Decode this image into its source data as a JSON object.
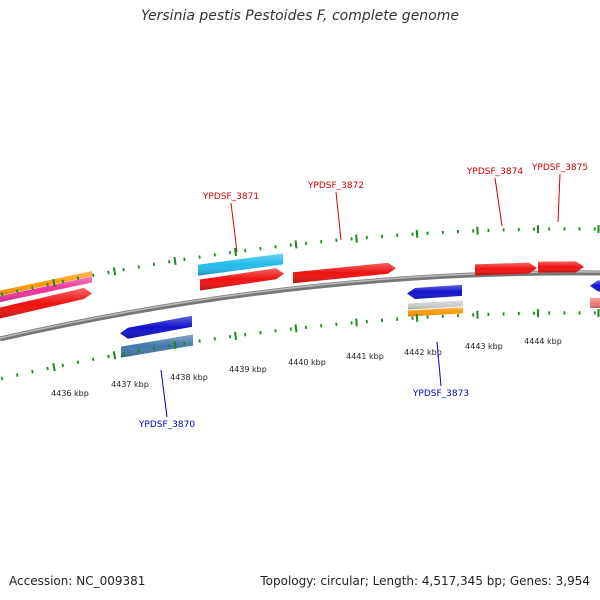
{
  "title": "Yersinia pestis Pestoides F, complete genome",
  "footer": {
    "accession": "Accession: NC_009381",
    "summary": "Topology: circular; Length: 4,517,345 bp; Genes: 3,954"
  },
  "colors": {
    "backbone": "#888888",
    "tick": "#1a8a1a",
    "forward_label": "#cc0000",
    "reverse_label": "#0000cc"
  },
  "ticks": [
    {
      "label": "4436 kbp"
    },
    {
      "label": "4437 kbp"
    },
    {
      "label": "4438 kbp"
    },
    {
      "label": "4439 kbp"
    },
    {
      "label": "4440 kbp"
    },
    {
      "label": "4441 kbp"
    },
    {
      "label": "4442 kbp"
    },
    {
      "label": "4443 kbp"
    },
    {
      "label": "4444 kbp"
    }
  ],
  "genes": [
    {
      "label": "YPDSF_3870",
      "strand": "reverse",
      "color": "#1111cc"
    },
    {
      "label": "YPDSF_3871",
      "strand": "forward",
      "color": "#ee1111"
    },
    {
      "label": "YPDSF_3872",
      "strand": "forward",
      "color": "#ee1111"
    },
    {
      "label": "YPDSF_3873",
      "strand": "reverse",
      "color": "#1111cc"
    },
    {
      "label": "YPDSF_3874",
      "strand": "forward",
      "color": "#ee1111"
    },
    {
      "label": "YPDSF_3875",
      "strand": "forward",
      "color": "#ee1111"
    }
  ]
}
